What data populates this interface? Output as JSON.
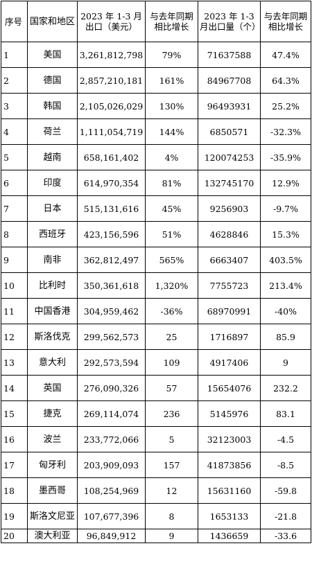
{
  "table": {
    "headers": [
      "序号",
      "国家和地区",
      "2023 年 1-3 月出口（美元）",
      "与去年同期相比增长",
      "2023 年 1-3 月出口量（个）",
      "与去年同期相比增长"
    ],
    "rows": [
      {
        "seq": "1",
        "country": "美国",
        "export_usd": "3,261,812,798",
        "usd_growth": "79%",
        "quantity": "71637588",
        "qty_growth": "47.4%"
      },
      {
        "seq": "2",
        "country": "德国",
        "export_usd": "2,857,210,181",
        "usd_growth": "161%",
        "quantity": "84967708",
        "qty_growth": "64.3%"
      },
      {
        "seq": "3",
        "country": "韩国",
        "export_usd": "2,105,026,029",
        "usd_growth": "130%",
        "quantity": "96493931",
        "qty_growth": "25.2%"
      },
      {
        "seq": "4",
        "country": "荷兰",
        "export_usd": "1,111,054,719",
        "usd_growth": "144%",
        "quantity": "6850571",
        "qty_growth": "-32.3%"
      },
      {
        "seq": "5",
        "country": "越南",
        "export_usd": "658,161,402",
        "usd_growth": "4%",
        "quantity": "120074253",
        "qty_growth": "-35.9%"
      },
      {
        "seq": "6",
        "country": "印度",
        "export_usd": "614,970,354",
        "usd_growth": "81%",
        "quantity": "132745170",
        "qty_growth": "12.9%"
      },
      {
        "seq": "7",
        "country": "日本",
        "export_usd": "515,131,616",
        "usd_growth": "45%",
        "quantity": "9256903",
        "qty_growth": "-9.7%"
      },
      {
        "seq": "8",
        "country": "西班牙",
        "export_usd": "423,156,596",
        "usd_growth": "51%",
        "quantity": "4628846",
        "qty_growth": "15.3%"
      },
      {
        "seq": "9",
        "country": "南非",
        "export_usd": "362,812,497",
        "usd_growth": "565%",
        "quantity": "6663407",
        "qty_growth": "403.5%"
      },
      {
        "seq": "10",
        "country": "比利时",
        "export_usd": "350,361,618",
        "usd_growth": "1,320%",
        "quantity": "7755723",
        "qty_growth": "213.4%"
      },
      {
        "seq": "11",
        "country": "中国香港",
        "export_usd": "304,959,462",
        "usd_growth": "-36%",
        "quantity": "68970991",
        "qty_growth": "-40%"
      },
      {
        "seq": "12",
        "country": "斯洛伐克",
        "export_usd": "299,562,573",
        "usd_growth": "25",
        "quantity": "1716897",
        "qty_growth": "85.9"
      },
      {
        "seq": "13",
        "country": "意大利",
        "export_usd": "292,573,594",
        "usd_growth": "109",
        "quantity": "4917406",
        "qty_growth": "9"
      },
      {
        "seq": "14",
        "country": "英国",
        "export_usd": "276,090,326",
        "usd_growth": "57",
        "quantity": "15654076",
        "qty_growth": "232.2"
      },
      {
        "seq": "15",
        "country": "捷克",
        "export_usd": "269,114,074",
        "usd_growth": "236",
        "quantity": "5145976",
        "qty_growth": "83.1"
      },
      {
        "seq": "16",
        "country": "波兰",
        "export_usd": "233,772,066",
        "usd_growth": "5",
        "quantity": "32123003",
        "qty_growth": "-4.5"
      },
      {
        "seq": "17",
        "country": "匈牙利",
        "export_usd": "203,909,093",
        "usd_growth": "157",
        "quantity": "41873856",
        "qty_growth": "-8.5"
      },
      {
        "seq": "18",
        "country": "墨西哥",
        "export_usd": "108,254,969",
        "usd_growth": "12",
        "quantity": "15631160",
        "qty_growth": "-59.8"
      },
      {
        "seq": "19",
        "country": "斯洛文尼亚",
        "export_usd": "107,677,396",
        "usd_growth": "8",
        "quantity": "1653133",
        "qty_growth": "-21.8"
      },
      {
        "seq": "20",
        "country": "澳大利亚",
        "export_usd": "96,849,912",
        "usd_growth": "9",
        "quantity": "1436659",
        "qty_growth": "-33.6"
      }
    ]
  }
}
